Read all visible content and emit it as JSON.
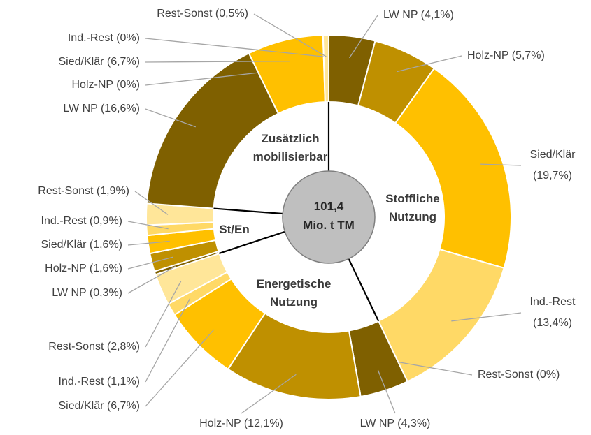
{
  "chart_data": {
    "type": "donut",
    "center_label": [
      "101,4",
      "Mio. t TM"
    ],
    "colors": [
      "#7f6000",
      "#bf9000",
      "#ffc000",
      "#ffd966",
      "#ffe699"
    ],
    "groups": [
      {
        "label": [
          "Stoffliche",
          "Nutzung"
        ],
        "values": [
          4.1,
          5.7,
          19.7,
          13.4,
          0
        ],
        "value_labels": [
          [
            "LW NP (4,1%)"
          ],
          [
            "Holz-NP (5,7%)"
          ],
          [
            "Sied/Klär",
            "(19,7%)"
          ],
          [
            "Ind.-Rest",
            "(13,4%)"
          ],
          [
            "Rest-Sonst (0%)"
          ]
        ]
      },
      {
        "label": [
          "Energetische",
          "Nutzung"
        ],
        "values": [
          4.3,
          12.1,
          6.7,
          1.1,
          2.8
        ],
        "value_labels": [
          [
            "LW NP (4,3%)"
          ],
          [
            "Holz-NP (12,1%)"
          ],
          [
            "Sied/Klär (6,7%)"
          ],
          [
            "Ind.-Rest (1,1%)"
          ],
          [
            "Rest-Sonst (2,8%)"
          ]
        ]
      },
      {
        "label": [
          "St/En"
        ],
        "values": [
          0.3,
          1.6,
          1.6,
          0.9,
          1.9
        ],
        "value_labels": [
          [
            "LW NP (0,3%)"
          ],
          [
            "Holz-NP (1,6%)"
          ],
          [
            "Sied/Klär (1,6%)"
          ],
          [
            "Ind.-Rest (0,9%)"
          ],
          [
            "Rest-Sonst (1,9%)"
          ]
        ]
      },
      {
        "label": [
          "Zusätzlich",
          "mobilisierbar"
        ],
        "values": [
          16.6,
          0,
          6.7,
          0,
          0.5
        ],
        "value_labels": [
          [
            "LW NP (16,6%)"
          ],
          [
            "Holz-NP (0%)"
          ],
          [
            "Sied/Klär (6,7%)"
          ],
          [
            "Ind.-Rest (0%)"
          ],
          [
            "Rest-Sonst (0,5%)"
          ]
        ]
      }
    ]
  }
}
